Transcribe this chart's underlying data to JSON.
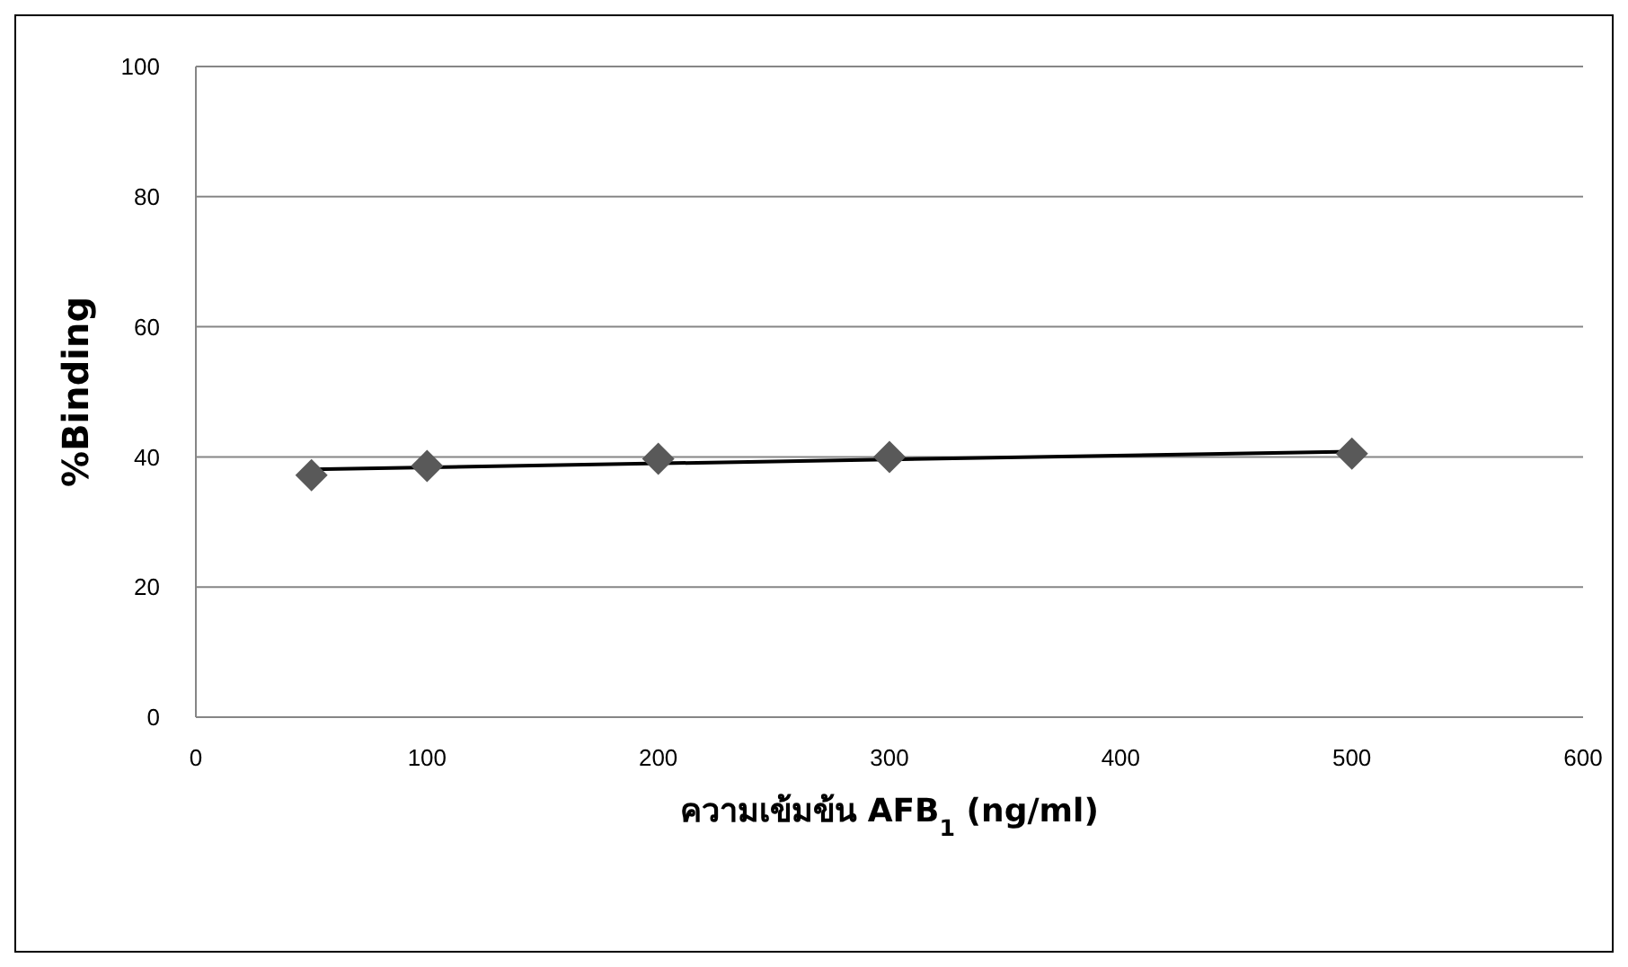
{
  "chart_data": {
    "type": "scatter",
    "xlabel": "ความเข้มข้น AFB$_{1}$ (ng/ml)",
    "ylabel": "%Binding",
    "x": [
      50,
      100,
      200,
      300,
      500
    ],
    "series": [
      {
        "color": "#595959",
        "values": [
          37.2,
          38.6,
          39.7,
          40.0,
          40.5
        ],
        "marker": "diamond"
      },
      {
        "type": "line",
        "color": "#000000",
        "x": [
          50,
          500
        ],
        "values": [
          38.1,
          40.8
        ],
        "marker": "none"
      }
    ],
    "xlim": [
      0,
      600
    ],
    "xticks": [
      0,
      100,
      200,
      300,
      400,
      500,
      600
    ],
    "ylim": [
      0,
      100
    ],
    "yticks": [
      0,
      20,
      40,
      60,
      80,
      100
    ],
    "grid": "y"
  }
}
